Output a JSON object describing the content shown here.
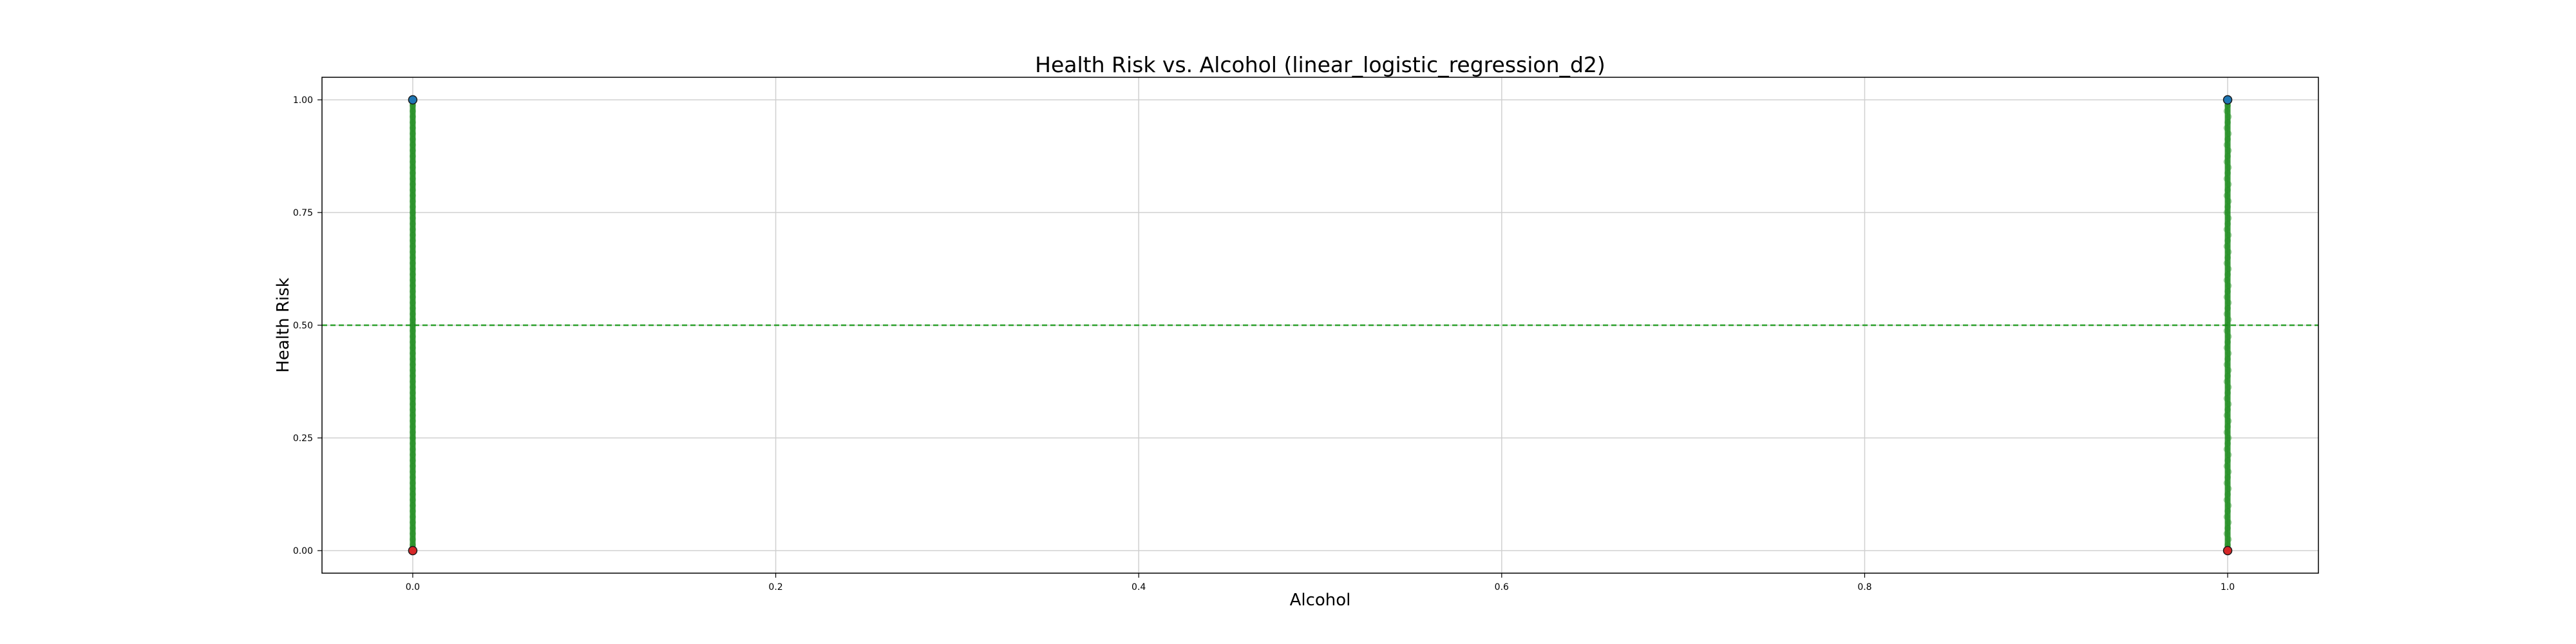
{
  "chart_data": {
    "type": "scatter",
    "title": "Health Risk vs. Alcohol (linear_logistic_regression_d2)",
    "xlabel": "Alcohol",
    "ylabel": "Health Risk",
    "xlim": [
      -0.05,
      1.05
    ],
    "ylim": [
      -0.05,
      1.05
    ],
    "x_ticks": [
      "0.0",
      "0.2",
      "0.4",
      "0.6",
      "0.8",
      "1.0"
    ],
    "y_ticks": [
      "0.00",
      "0.25",
      "0.50",
      "0.75",
      "1.00"
    ],
    "grid": true,
    "threshold_line": {
      "y": 0.5,
      "style": "dashed",
      "color": "#2ca02c"
    },
    "prediction_series": {
      "color": "#1a8a1a",
      "x_values": [
        0,
        1
      ],
      "y_range": [
        0,
        1
      ]
    },
    "actual_points": [
      {
        "x": 0,
        "y": 1,
        "color": "#1f77b4"
      },
      {
        "x": 0,
        "y": 0,
        "color": "#d62728"
      },
      {
        "x": 1,
        "y": 1,
        "color": "#1f77b4"
      },
      {
        "x": 1,
        "y": 0,
        "color": "#d62728"
      }
    ],
    "colors": {
      "grid": "#d0d0d0",
      "frame": "#000000",
      "predicted": "#1a8a1a",
      "positive": "#1f77b4",
      "negative": "#d62728"
    }
  }
}
